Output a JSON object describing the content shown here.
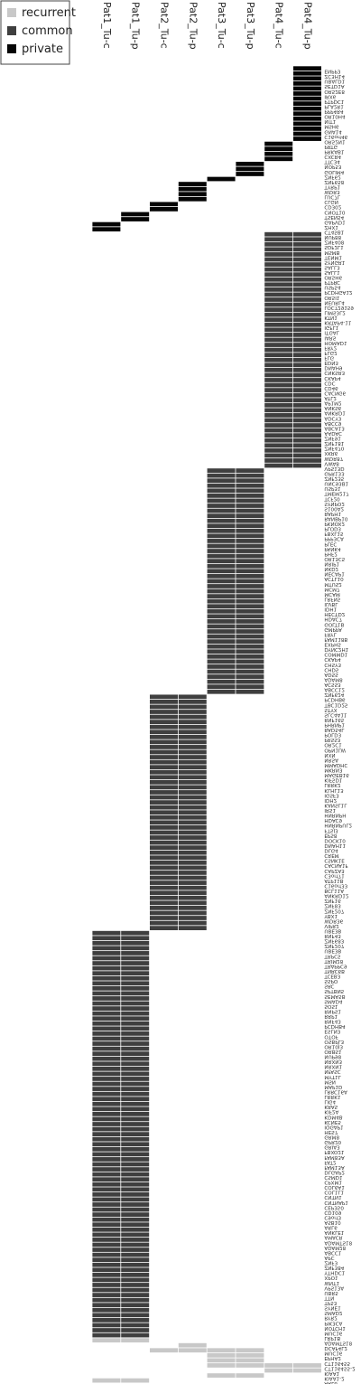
{
  "legend": {
    "items": [
      {
        "label": "recurrent",
        "color": "#c8c8c8"
      },
      {
        "label": "common",
        "color": "#3f3f3f"
      },
      {
        "label": "private",
        "color": "#050505"
      }
    ]
  },
  "chart_data": {
    "type": "heatmap",
    "legend_position": "top-left",
    "columns": [
      "Pat1_Tu-c",
      "Pat1_Tu-p",
      "Pat2_Tu-c",
      "Pat2_Tu-p",
      "Pat3_Tu-c",
      "Pat3_Tu-p",
      "Pat4_Tu-c",
      "Pat4_Tu-p"
    ],
    "blocks": [
      {
        "type": "private",
        "cols": [
          7
        ],
        "genes": [
          "ENPP3",
          "ZC3H14",
          "UBALD1",
          "SETD1A",
          "OR52E8",
          "IRX6",
          "PTPDC1",
          "PLA2R1",
          "PPP4R4",
          "OR10H4",
          "NIT1",
          "MSH6",
          "GNA14",
          "C16orf46",
          "OR52N1"
        ]
      },
      {
        "type": "private",
        "cols": [
          6
        ],
        "genes": [
          "PRTG",
          "PRKAB1",
          "CXCR4",
          "TTC34"
        ]
      },
      {
        "type": "private",
        "cols": [
          5
        ],
        "genes": [
          "NOP53",
          "GOLIM4",
          "ZNF62"
        ]
      },
      {
        "type": "private",
        "cols": [
          4
        ],
        "genes": [
          "ZNF658"
        ]
      },
      {
        "type": "private",
        "cols": [
          3
        ],
        "genes": [
          "TYRP1",
          "WDR3",
          "LUC7L",
          "CLGN"
        ]
      },
      {
        "type": "private",
        "cols": [
          2
        ],
        "genes": [
          "CD302",
          "CNOT10"
        ]
      },
      {
        "type": "private",
        "cols": [
          1
        ],
        "genes": [
          "TSEN54",
          "GAPVD1"
        ]
      },
      {
        "type": "private",
        "cols": [
          0
        ],
        "genes": [
          "ZHX1",
          "CT45B1"
        ]
      },
      {
        "type": "common",
        "cols": [
          6,
          7
        ],
        "genes": [
          "NUP88",
          "ZNF408",
          "SDF2L1",
          "MSMB",
          "TENM1",
          "SYNGR1",
          "SALL3",
          "SALL1",
          "OR5H6",
          "PTPRC",
          "USP54",
          "PCDHGA12",
          "OR5I1",
          "NEURL4",
          "LOC729159",
          "LIMS3L2",
          "KTN1",
          "KRTAP4-11",
          "IGFL1",
          "ITGAL",
          "IARS",
          "HOMAD1",
          "FRY2",
          "FLG2",
          "FLG",
          "EDN3",
          "DNAH9",
          "CNKSR3",
          "CKAP4",
          "CDC",
          "CD46",
          "CACNG6",
          "ATL2",
          "AP1M2",
          "ANKS6",
          "ANKRD1",
          "ADCY3",
          "ABCC9",
          "ABCA13",
          "AADAC",
          "ZNF91",
          "ZNF181",
          "ZNF470",
          "XKR6",
          "WDR87",
          "VWA8",
          "VPS13D"
        ]
      },
      {
        "type": "common",
        "cols": [
          4,
          5
        ],
        "genes": [
          "GPR133",
          "ZNF235",
          "UNC93B1",
          "USP31",
          "TMEM217",
          "TCF20",
          "SYNPO2",
          "S100A2",
          "RAPH1",
          "RANBP10",
          "PKNOX2",
          "PLOD3",
          "FBXL15",
          "PPP3CA",
          "PLEC",
          "PANK4",
          "PHF2",
          "OR13C5",
          "NRIP1",
          "NKD2",
          "NECAP1",
          "ACTL10",
          "MTUS2",
          "MCM7",
          "MCAM",
          "LRFN5",
          "ILVBL",
          "IDH1",
          "HECTD2",
          "HDAC7",
          "GOLT1B",
          "GMPPA",
          "FRYL",
          "FAM118B",
          "EXPH5",
          "DYNC2H1",
          "COMMD1",
          "CKAP4",
          "CHSY3",
          "CHD5",
          "ADSS",
          "ADAM8",
          "ACSS3",
          "ABCC12",
          "ZNF624"
        ]
      },
      {
        "type": "common",
        "cols": [
          2,
          3
        ],
        "genes": [
          "PCDHB6",
          "TBC1D25",
          "STYX",
          "SLC4A11",
          "RNF165",
          "PHRNP1",
          "RAD54L",
          "POLD3",
          "PRSS3",
          "OR2C1",
          "OPN1LW",
          "NXN",
          "NRSA",
          "MMADHC",
          "MKRN3",
          "MAGEB16",
          "KIF5D1",
          "LRRK2",
          "KLHL13",
          "IGSF3",
          "IDH2",
          "KANSL1L",
          "IRS1",
          "HNRNPH",
          "HDAC9",
          "HNRNPUL2",
          "FTSJ3",
          "EPS8",
          "DOCK10",
          "DNAH11",
          "DLG4",
          "CREM",
          "CSNK1E",
          "CACNA1F",
          "CAPZA3",
          "C3orf71",
          "ATP11B",
          "C16orf33",
          "BCL11A",
          "ANKRD12",
          "ZNF16",
          "ZNF83",
          "ZNF207",
          "YBX1",
          "WDR36",
          "VIPR2",
          "UBE3B"
        ]
      },
      {
        "type": "common",
        "cols": [
          0,
          1
        ],
        "genes": [
          "RNF43",
          "ZNF683",
          "ZNF207",
          "UBE3B",
          "TRPC5",
          "TRIM28",
          "TRAPPC9",
          "TNRC6B",
          "TCEB3",
          "SSPO",
          "SRC",
          "SPTBN5",
          "SEMA5B",
          "SMAD4",
          "SOS1",
          "RNPS1",
          "RRP1",
          "RNF43",
          "PCDHB4",
          "ESLN3",
          "OTOF",
          "OSBPL3",
          "OR10J3",
          "ORBS1",
          "NUP98",
          "NRXN3",
          "NRXN1",
          "NFASC",
          "MYT1L",
          "MSN",
          "MAP1D",
          "LRRC16A",
          "LRRK1",
          "LIG4",
          "KRAS",
          "KIF2A",
          "KDM4B",
          "KCNE5",
          "IQGAP1",
          "HES7",
          "GRM8",
          "GPR20",
          "GRIA3",
          "FBXO21",
          "FAM83A",
          "FAT2",
          "FAM13A",
          "DLGAP2",
          "CSMD1",
          "CPXM1",
          "COL6A1",
          "COL1L1",
          "CNTN1",
          "CNTNAP1",
          "CEP350",
          "CD109",
          "C9orf3",
          "ASB10",
          "ARL6",
          "ANKLE1",
          "AMACR",
          "ADAMTS18",
          "ADAM28",
          "ABCC1",
          "APC",
          "ZNF3",
          "ZNF384",
          "YTHDC1",
          "XPO1",
          "WNT1",
          "VPS13A",
          "UBR5",
          "TTN",
          "TP53",
          "SYNE1",
          "SMAD2",
          "RYR2",
          "PIK3CA",
          "NOTCH1",
          "MUC16",
          "LRP1B"
        ]
      },
      {
        "type": "recurrent",
        "cols": [
          0,
          1
        ],
        "genes": [
          "ADAMTS18"
        ]
      },
      {
        "type": "recurrent",
        "cols": [
          3
        ],
        "genes": [
          "DCAF4L2"
        ]
      },
      {
        "type": "recurrent",
        "cols": [
          2,
          3,
          4,
          5
        ],
        "genes": [
          "MUC16"
        ]
      },
      {
        "type": "recurrent",
        "cols": [
          4,
          5
        ],
        "genes": [
          "EPHA2",
          "CT116455"
        ]
      },
      {
        "type": "recurrent",
        "cols": [
          4,
          5,
          6,
          7
        ],
        "genes": [
          "CT116455-2"
        ]
      },
      {
        "type": "recurrent",
        "cols": [
          6,
          7
        ],
        "genes": [
          "KIAA1"
        ]
      },
      {
        "type": "recurrent",
        "cols": [
          4,
          5
        ],
        "genes": [
          "KIAA1-2"
        ]
      },
      {
        "type": "recurrent",
        "cols": [
          0,
          1
        ],
        "genes": [
          "ARL6"
        ]
      }
    ]
  }
}
